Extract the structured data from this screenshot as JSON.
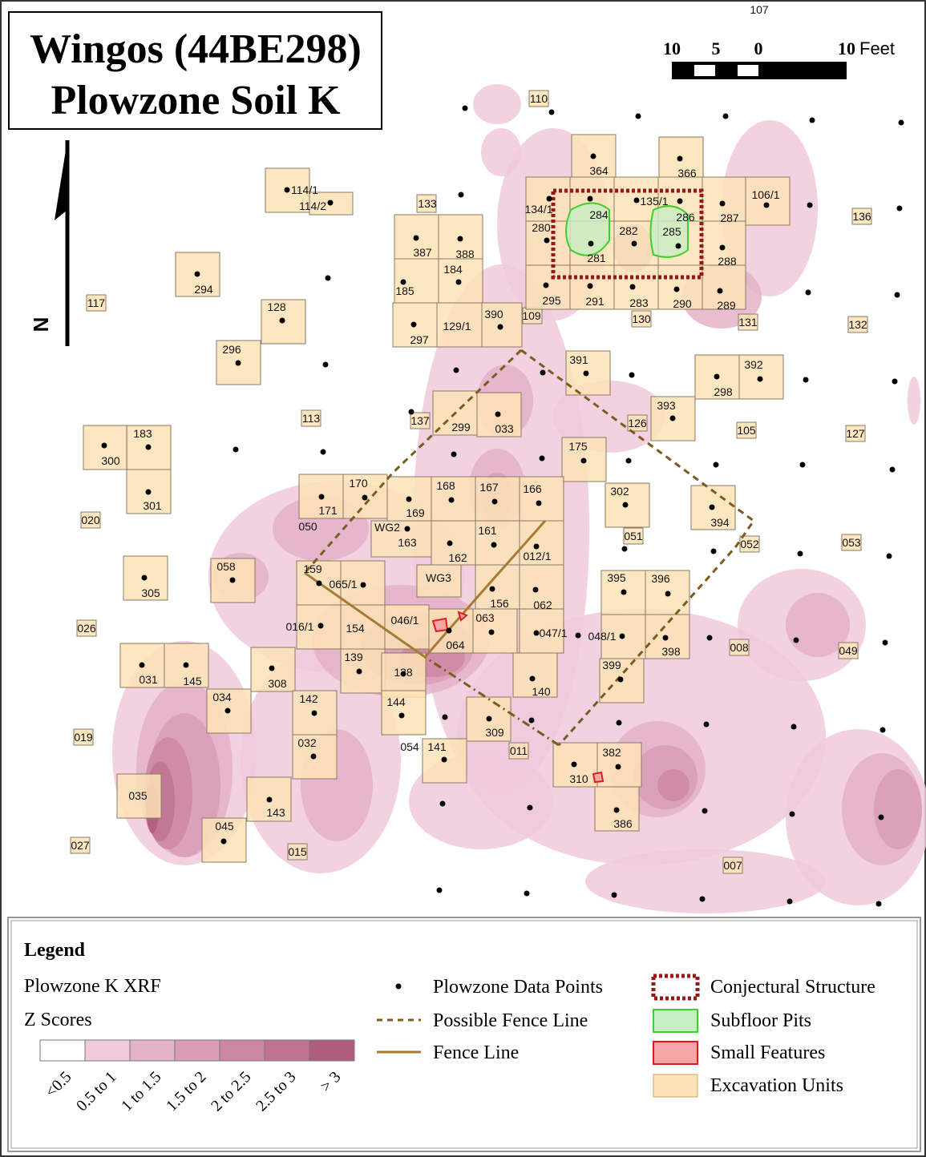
{
  "title": {
    "line1": "Wingos (44BE298)",
    "line2": "Plowzone Soil K"
  },
  "scale_bar": {
    "labels": [
      "10",
      "5",
      "0",
      "10"
    ],
    "unit": "Feet"
  },
  "north": "N",
  "unit_labels": [
    "107",
    "110",
    "364",
    "366",
    "114/1",
    "114/2",
    "133",
    "134/1",
    "135/1",
    "284",
    "286",
    "287",
    "106/1",
    "136",
    "280",
    "282",
    "285",
    "387",
    "388",
    "184",
    "185",
    "294",
    "281",
    "288",
    "117",
    "128",
    "295",
    "291",
    "283",
    "290",
    "289",
    "390",
    "109",
    "130",
    "131",
    "132",
    "129/1",
    "297",
    "296",
    "391",
    "392",
    "298",
    "393",
    "113",
    "137",
    "299",
    "033",
    "126",
    "105",
    "127",
    "183",
    "300",
    "175",
    "170",
    "168",
    "167",
    "166",
    "302",
    "301",
    "171",
    "169",
    "020",
    "394",
    "050",
    "WG2",
    "161",
    "051",
    "012/1",
    "052",
    "053",
    "163",
    "162",
    "058",
    "159",
    "065/1",
    "WG3",
    "395",
    "396",
    "305",
    "156",
    "062",
    "046/1",
    "063",
    "016/1",
    "154",
    "026",
    "047/1",
    "048/1",
    "008",
    "049",
    "064",
    "398",
    "139",
    "138",
    "399",
    "031",
    "145",
    "308",
    "140",
    "034",
    "142",
    "144",
    "309",
    "019",
    "032",
    "054",
    "141",
    "011",
    "382",
    "310",
    "035",
    "143",
    "386",
    "045",
    "027",
    "015",
    "007"
  ],
  "legend": {
    "title": "Legend",
    "layer_title": "Plowzone K XRF",
    "subtitle": "Z Scores",
    "classes": [
      {
        "label": "<0.5",
        "color": "#ffffff"
      },
      {
        "label": "0.5 to 1",
        "color": "#f0c9dc"
      },
      {
        "label": "1 to 1.5",
        "color": "#e4b2c8"
      },
      {
        "label": "1.5 to 2",
        "color": "#d99db6"
      },
      {
        "label": "2 to 2.5",
        "color": "#cc87a3"
      },
      {
        "label": "2.5 to 3",
        "color": "#bf7393"
      },
      {
        "label": "> 3",
        "color": "#b05c7f"
      }
    ],
    "items": [
      "Plowzone Data Points",
      "Possible Fence Line",
      "Fence Line",
      "Conjectural Structure",
      "Subfloor Pits",
      "Small Features",
      "Excavation Units"
    ]
  }
}
